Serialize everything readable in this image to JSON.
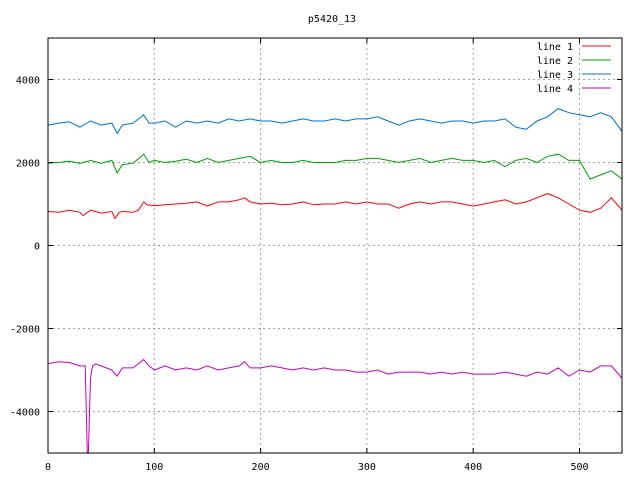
{
  "chart_data": {
    "type": "line",
    "title": "p5420_13",
    "xlabel": "",
    "ylabel": "",
    "xlim": [
      0,
      540
    ],
    "ylim": [
      -5000,
      5000
    ],
    "xticks": [
      0,
      100,
      200,
      300,
      400,
      500
    ],
    "yticks": [
      -4000,
      -2000,
      0,
      2000,
      4000
    ],
    "grid": true,
    "legend_position": "top-right",
    "series": [
      {
        "name": "line 1",
        "color": "#ff0000",
        "x": [
          0,
          10,
          20,
          30,
          33,
          40,
          50,
          60,
          63,
          67,
          70,
          80,
          85,
          90,
          93,
          100,
          110,
          120,
          130,
          140,
          150,
          160,
          170,
          180,
          185,
          190,
          200,
          210,
          220,
          230,
          240,
          250,
          260,
          270,
          280,
          290,
          300,
          310,
          320,
          330,
          340,
          350,
          360,
          370,
          380,
          390,
          400,
          410,
          420,
          430,
          440,
          450,
          460,
          470,
          480,
          490,
          500,
          510,
          520,
          530,
          540
        ],
        "y": [
          820,
          800,
          850,
          800,
          720,
          850,
          780,
          820,
          650,
          800,
          820,
          800,
          850,
          1050,
          980,
          960,
          980,
          1000,
          1020,
          1050,
          950,
          1050,
          1050,
          1100,
          1150,
          1050,
          1000,
          1020,
          980,
          1000,
          1050,
          980,
          1000,
          1000,
          1050,
          1000,
          1050,
          1000,
          1000,
          900,
          1000,
          1050,
          1000,
          1050,
          1050,
          1000,
          950,
          1000,
          1050,
          1100,
          1000,
          1050,
          1150,
          1250,
          1150,
          1000,
          850,
          800,
          900,
          1150,
          850
        ]
      },
      {
        "name": "line 2",
        "color": "#00a000",
        "x": [
          0,
          10,
          20,
          30,
          40,
          50,
          60,
          65,
          70,
          80,
          90,
          95,
          100,
          110,
          120,
          130,
          140,
          150,
          160,
          170,
          180,
          190,
          200,
          210,
          220,
          230,
          240,
          250,
          260,
          270,
          280,
          290,
          300,
          310,
          320,
          330,
          340,
          350,
          360,
          370,
          380,
          390,
          400,
          410,
          420,
          430,
          440,
          450,
          460,
          470,
          480,
          490,
          500,
          510,
          520,
          530,
          540
        ],
        "y": [
          1980,
          2000,
          2030,
          1980,
          2050,
          1980,
          2050,
          1750,
          1950,
          1980,
          2200,
          2000,
          2050,
          2000,
          2030,
          2080,
          2000,
          2100,
          2000,
          2050,
          2100,
          2150,
          2000,
          2050,
          2000,
          2000,
          2050,
          2000,
          2000,
          2000,
          2050,
          2050,
          2100,
          2100,
          2050,
          2000,
          2050,
          2100,
          2000,
          2050,
          2100,
          2050,
          2050,
          2000,
          2050,
          1900,
          2050,
          2100,
          2000,
          2150,
          2200,
          2050,
          2050,
          1600,
          1700,
          1800,
          1600
        ]
      },
      {
        "name": "line 3",
        "color": "#0070d0",
        "x": [
          0,
          10,
          20,
          30,
          40,
          50,
          60,
          65,
          70,
          80,
          90,
          95,
          100,
          110,
          120,
          130,
          140,
          150,
          160,
          170,
          180,
          190,
          200,
          210,
          220,
          230,
          240,
          250,
          260,
          270,
          280,
          290,
          300,
          310,
          320,
          330,
          340,
          350,
          360,
          370,
          380,
          390,
          400,
          410,
          420,
          430,
          440,
          450,
          460,
          470,
          480,
          490,
          500,
          510,
          520,
          530,
          540
        ],
        "y": [
          2900,
          2950,
          2980,
          2850,
          3000,
          2900,
          2950,
          2700,
          2900,
          2950,
          3150,
          2950,
          2950,
          3000,
          2850,
          3000,
          2950,
          3000,
          2950,
          3050,
          3000,
          3050,
          3000,
          3000,
          2950,
          3000,
          3050,
          3000,
          3000,
          3050,
          3000,
          3050,
          3050,
          3100,
          3000,
          2900,
          3000,
          3050,
          3000,
          2950,
          3000,
          3000,
          2950,
          3000,
          3000,
          3050,
          2850,
          2800,
          3000,
          3100,
          3300,
          3200,
          3150,
          3100,
          3200,
          3100,
          2750
        ]
      },
      {
        "name": "line 4",
        "color": "#c000c0",
        "x": [
          0,
          10,
          20,
          30,
          35,
          37,
          38,
          40,
          42,
          45,
          50,
          60,
          65,
          70,
          80,
          90,
          95,
          100,
          110,
          120,
          130,
          140,
          150,
          160,
          170,
          180,
          185,
          190,
          200,
          210,
          220,
          230,
          240,
          250,
          260,
          270,
          280,
          290,
          300,
          310,
          320,
          330,
          340,
          350,
          360,
          370,
          380,
          390,
          400,
          410,
          420,
          430,
          440,
          450,
          460,
          470,
          480,
          490,
          500,
          510,
          520,
          530,
          540
        ],
        "y": [
          -2850,
          -2800,
          -2820,
          -2900,
          -2900,
          -5000,
          -5000,
          -3200,
          -2900,
          -2850,
          -2900,
          -3000,
          -3150,
          -2950,
          -2950,
          -2750,
          -2900,
          -3000,
          -2900,
          -3000,
          -2950,
          -3000,
          -2900,
          -3000,
          -2950,
          -2900,
          -2800,
          -2950,
          -2950,
          -2900,
          -2950,
          -3000,
          -2950,
          -3000,
          -2950,
          -3000,
          -3000,
          -3050,
          -3050,
          -3000,
          -3100,
          -3050,
          -3050,
          -3050,
          -3100,
          -3050,
          -3100,
          -3050,
          -3100,
          -3100,
          -3100,
          -3050,
          -3100,
          -3150,
          -3050,
          -3100,
          -2950,
          -3150,
          -3000,
          -3050,
          -2900,
          -2900,
          -3200
        ]
      }
    ]
  }
}
